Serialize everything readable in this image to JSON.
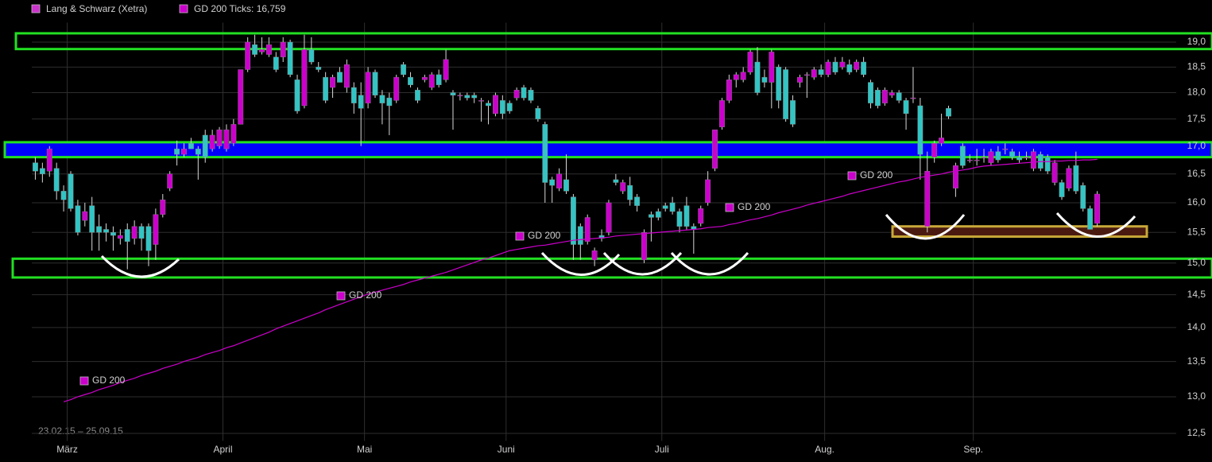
{
  "chart_data": {
    "type": "candlestick",
    "log_scale": true,
    "grid": true,
    "ylim": [
      12.4,
      19.4
    ],
    "yticks": [
      {
        "value": 12.5,
        "label": "12,5"
      },
      {
        "value": 13,
        "label": "13,0"
      },
      {
        "value": 13.5,
        "label": "13,5"
      },
      {
        "value": 14,
        "label": "14,0"
      },
      {
        "value": 14.5,
        "label": "14,5"
      },
      {
        "value": 15,
        "label": "15,0"
      },
      {
        "value": 15.5,
        "label": "15,5"
      },
      {
        "value": 16,
        "label": "16,0"
      },
      {
        "value": 16.5,
        "label": "16,5"
      },
      {
        "value": 17,
        "label": "17,0"
      },
      {
        "value": 17.5,
        "label": "17,5"
      },
      {
        "value": 18,
        "label": "18,0"
      },
      {
        "value": 18.5,
        "label": "18,5"
      },
      {
        "value": 19,
        "label": "19,0"
      }
    ],
    "date_range": "23.02.15 – 25.09.15",
    "categories": [
      null,
      null,
      null,
      null,
      null,
      "März",
      null,
      null,
      null,
      null,
      null,
      null,
      null,
      null,
      null,
      null,
      null,
      null,
      null,
      null,
      null,
      null,
      null,
      null,
      null,
      null,
      null,
      "April",
      null,
      null,
      null,
      null,
      null,
      null,
      null,
      null,
      null,
      null,
      null,
      null,
      null,
      null,
      null,
      null,
      null,
      null,
      null,
      "Mai",
      null,
      null,
      null,
      null,
      null,
      null,
      null,
      null,
      null,
      null,
      null,
      null,
      null,
      null,
      null,
      null,
      null,
      null,
      null,
      "Juni",
      null,
      null,
      null,
      null,
      null,
      null,
      null,
      null,
      null,
      null,
      null,
      null,
      null,
      null,
      null,
      null,
      null,
      null,
      null,
      null,
      null,
      "Juli",
      null,
      null,
      null,
      null,
      null,
      null,
      null,
      null,
      null,
      null,
      null,
      null,
      null,
      null,
      null,
      null,
      null,
      null,
      null,
      null,
      null,
      null,
      "Aug.",
      null,
      null,
      null,
      null,
      null,
      null,
      null,
      null,
      null,
      null,
      null,
      null,
      null,
      null,
      null,
      null,
      null,
      null,
      null,
      null,
      "Sep.",
      null,
      null,
      null,
      null,
      null,
      null,
      null,
      null,
      null,
      null,
      null,
      null,
      null,
      null,
      null,
      null,
      null
    ],
    "series": [
      {
        "name": "Lang & Schwarz (Xetra)",
        "color": "#cc33cc",
        "up_color": "#cc00cc",
        "down_color": "#33c4c4",
        "wick_color": "#d8d8d8",
        "open": [
          16.7,
          16.6,
          16.55,
          16.6,
          16.2,
          16.5,
          15.95,
          15.7,
          15.95,
          15.6,
          15.55,
          15.5,
          15.4,
          15.55,
          15.4,
          15.6,
          15.6,
          15.3,
          15.8,
          16.25,
          16.95,
          16.85,
          17.05,
          16.95,
          17.2,
          16.95,
          17.0,
          16.95,
          17.05,
          17.4,
          18.45,
          18.95,
          18.8,
          18.75,
          18.7,
          18.7,
          19.0,
          18.25,
          17.75,
          18.85,
          18.5,
          18.3,
          18.1,
          18.4,
          18.1,
          18.1,
          17.95,
          17.8,
          18.4,
          17.95,
          17.9,
          17.85,
          18.55,
          18.3,
          18.05,
          18.25,
          18.1,
          18.35,
          18.25,
          18.0,
          17.95,
          17.95,
          17.95,
          17.85,
          17.8,
          17.6,
          17.85,
          17.8,
          17.9,
          18.1,
          18.05,
          17.7,
          17.4,
          16.4,
          16.25,
          16.4,
          16.1,
          15.6,
          15.35,
          15.05,
          15.45,
          15.5,
          16.4,
          16.2,
          16.3,
          16.1,
          15.05,
          15.8,
          15.85,
          15.95,
          16.0,
          15.85,
          15.95,
          15.6,
          15.65,
          16.0,
          16.6,
          17.35,
          17.85,
          18.25,
          18.25,
          18.4,
          18.6,
          18.3,
          18.2,
          18.5,
          18.45,
          17.85,
          18.2,
          18.35,
          18.3,
          18.45,
          18.35,
          18.6,
          18.5,
          18.55,
          18.45,
          18.6,
          18.2,
          18.05,
          17.8,
          17.95,
          18.0,
          17.85,
          17.9,
          17.75,
          15.6,
          16.8,
          17.05,
          17.7,
          16.25,
          17.0,
          16.75,
          16.75,
          16.8,
          16.7,
          16.9,
          16.95,
          16.9,
          16.8,
          16.8,
          16.6,
          16.85,
          16.8,
          16.35,
          16.35,
          16.25,
          16.65,
          16.3,
          15.9,
          15.65
        ],
        "high": [
          16.8,
          16.7,
          17.0,
          16.7,
          16.3,
          16.55,
          16.05,
          16.0,
          16.1,
          15.8,
          15.65,
          15.6,
          15.55,
          15.65,
          15.7,
          15.65,
          15.65,
          15.9,
          16.15,
          16.55,
          17.1,
          17.05,
          17.15,
          17.0,
          17.3,
          17.3,
          17.35,
          17.4,
          17.5,
          18.45,
          19.1,
          19.15,
          19.1,
          19.1,
          18.8,
          19.1,
          19.05,
          18.35,
          19.15,
          19.1,
          18.6,
          18.4,
          18.35,
          18.5,
          18.65,
          18.2,
          18.2,
          18.5,
          18.45,
          18.05,
          18.0,
          18.35,
          18.6,
          18.4,
          18.1,
          18.35,
          18.4,
          18.45,
          18.85,
          18.05,
          18.0,
          18.0,
          18.0,
          17.9,
          17.85,
          18.0,
          17.95,
          17.85,
          18.1,
          18.15,
          18.1,
          17.75,
          17.45,
          16.45,
          16.6,
          16.85,
          16.15,
          15.65,
          15.8,
          15.25,
          15.55,
          16.05,
          16.5,
          16.4,
          16.45,
          16.15,
          15.55,
          15.85,
          15.9,
          16.0,
          16.1,
          15.9,
          16.1,
          15.65,
          15.95,
          16.55,
          17.3,
          17.9,
          18.35,
          18.4,
          18.5,
          18.85,
          18.9,
          18.45,
          18.85,
          18.55,
          18.5,
          17.95,
          18.35,
          18.4,
          18.5,
          18.55,
          18.65,
          18.7,
          18.7,
          18.65,
          18.65,
          18.7,
          18.25,
          18.1,
          18.1,
          18.05,
          18.05,
          17.9,
          18.5,
          17.9,
          16.9,
          17.1,
          17.6,
          17.75,
          16.7,
          17.05,
          16.85,
          16.95,
          16.95,
          16.95,
          17.0,
          17.05,
          16.95,
          16.9,
          16.9,
          16.95,
          16.9,
          16.85,
          16.75,
          16.4,
          16.65,
          16.9,
          16.35,
          15.95,
          16.2
        ],
        "low": [
          16.4,
          16.35,
          16.45,
          16.05,
          15.85,
          15.85,
          15.45,
          15.6,
          15.2,
          15.2,
          15.35,
          15.2,
          15.3,
          14.9,
          15.3,
          15.2,
          14.95,
          15.05,
          15.75,
          16.2,
          16.65,
          16.8,
          16.95,
          16.4,
          16.7,
          16.9,
          16.95,
          16.9,
          17.0,
          17.4,
          18.4,
          18.7,
          18.75,
          18.7,
          18.4,
          18.6,
          18.3,
          17.6,
          17.7,
          18.55,
          18.4,
          17.8,
          17.9,
          18.2,
          18.0,
          17.6,
          17.0,
          17.7,
          17.9,
          17.4,
          17.2,
          17.8,
          18.3,
          18.1,
          17.8,
          18.2,
          18.05,
          18.1,
          18.2,
          17.3,
          17.85,
          17.85,
          17.8,
          17.45,
          17.4,
          17.55,
          17.5,
          17.6,
          17.85,
          17.85,
          17.8,
          17.45,
          16.0,
          16.0,
          16.2,
          16.15,
          15.05,
          15.05,
          15.3,
          14.95,
          15.35,
          15.45,
          16.3,
          16.15,
          15.95,
          15.85,
          15.0,
          15.35,
          15.7,
          15.85,
          15.8,
          15.5,
          15.55,
          15.15,
          15.6,
          15.95,
          16.55,
          17.3,
          17.8,
          18.1,
          18.2,
          18.35,
          17.95,
          18.1,
          17.7,
          17.7,
          17.45,
          17.35,
          18.1,
          17.9,
          18.25,
          18.3,
          18.3,
          18.35,
          18.45,
          18.35,
          18.4,
          18.3,
          17.7,
          17.7,
          17.75,
          17.9,
          17.8,
          17.3,
          17.8,
          16.4,
          15.5,
          16.7,
          17.0,
          17.5,
          16.1,
          16.6,
          16.7,
          16.65,
          16.7,
          16.65,
          16.7,
          16.85,
          16.75,
          16.7,
          16.75,
          16.55,
          16.55,
          16.5,
          16.3,
          16.05,
          16.2,
          16.15,
          15.85,
          15.55,
          15.6
        ],
        "close": [
          16.55,
          16.5,
          16.95,
          16.2,
          16.05,
          15.9,
          15.5,
          15.85,
          15.5,
          15.5,
          15.5,
          15.45,
          15.45,
          15.35,
          15.6,
          15.4,
          15.2,
          15.8,
          16.05,
          16.5,
          16.85,
          16.95,
          16.95,
          16.85,
          16.8,
          17.2,
          17.3,
          17.3,
          17.4,
          18.45,
          19.0,
          18.75,
          18.85,
          18.95,
          18.45,
          19.0,
          18.35,
          17.65,
          18.85,
          18.6,
          18.45,
          17.85,
          18.3,
          18.2,
          18.55,
          17.8,
          17.7,
          18.4,
          17.95,
          17.8,
          17.75,
          18.3,
          18.35,
          18.15,
          17.85,
          18.3,
          18.35,
          18.15,
          18.65,
          17.95,
          17.95,
          17.9,
          17.9,
          17.85,
          17.75,
          17.95,
          17.6,
          17.65,
          18.05,
          17.9,
          17.85,
          17.5,
          16.35,
          16.3,
          16.5,
          16.2,
          15.3,
          15.3,
          15.75,
          15.2,
          15.4,
          16.0,
          16.35,
          16.35,
          16.05,
          15.95,
          15.5,
          15.75,
          15.75,
          15.9,
          15.85,
          15.6,
          15.6,
          15.55,
          15.9,
          16.4,
          17.3,
          17.85,
          18.25,
          18.35,
          18.4,
          18.8,
          18.0,
          18.2,
          18.8,
          17.85,
          17.5,
          17.4,
          18.3,
          18.35,
          18.45,
          18.35,
          18.6,
          18.4,
          18.6,
          18.4,
          18.6,
          18.35,
          17.8,
          17.75,
          18.05,
          18.0,
          17.85,
          17.6,
          17.9,
          16.85,
          16.55,
          17.05,
          17.15,
          17.55,
          16.65,
          16.65,
          16.75,
          16.75,
          16.8,
          16.9,
          16.75,
          16.95,
          16.8,
          16.75,
          16.8,
          16.9,
          16.6,
          16.55,
          16.7,
          16.1,
          16.6,
          16.2,
          15.9,
          15.55,
          16.15
        ]
      },
      {
        "name": "GD 200 Ticks: 16,759",
        "color": "#cc00cc",
        "values": [
          null,
          null,
          null,
          null,
          12.93,
          12.96,
          13.0,
          13.03,
          13.06,
          13.1,
          13.13,
          13.16,
          13.2,
          13.23,
          13.26,
          13.3,
          13.33,
          13.36,
          13.4,
          13.43,
          13.46,
          13.5,
          13.53,
          13.56,
          13.6,
          13.63,
          13.66,
          13.7,
          13.73,
          13.77,
          13.81,
          13.85,
          13.89,
          13.93,
          13.98,
          14.02,
          14.06,
          14.1,
          14.14,
          14.18,
          14.22,
          14.27,
          14.31,
          14.35,
          14.39,
          14.43,
          14.47,
          14.51,
          14.54,
          14.57,
          14.6,
          14.63,
          14.66,
          14.7,
          14.73,
          14.76,
          14.79,
          14.82,
          14.85,
          14.89,
          14.93,
          14.97,
          15.01,
          15.05,
          15.08,
          15.12,
          15.16,
          15.2,
          15.22,
          15.24,
          15.26,
          15.28,
          15.29,
          15.31,
          15.33,
          15.35,
          15.37,
          15.38,
          15.39,
          15.4,
          15.41,
          15.42,
          15.44,
          15.45,
          15.46,
          15.47,
          15.48,
          15.49,
          15.5,
          15.51,
          15.52,
          15.53,
          15.54,
          15.55,
          15.56,
          15.58,
          15.59,
          15.6,
          15.63,
          15.65,
          15.68,
          15.71,
          15.73,
          15.76,
          15.79,
          15.83,
          15.86,
          15.89,
          15.92,
          15.96,
          15.99,
          16.02,
          16.05,
          16.08,
          16.11,
          16.15,
          16.18,
          16.21,
          16.24,
          16.27,
          16.3,
          16.33,
          16.36,
          16.38,
          16.41,
          16.44,
          16.46,
          16.48,
          16.5,
          16.53,
          16.55,
          16.57,
          16.59,
          16.62,
          16.64,
          16.65,
          16.66,
          16.67,
          16.68,
          16.69,
          16.7,
          16.71,
          16.72,
          16.72,
          16.73,
          16.73,
          16.74,
          16.74,
          16.75,
          16.75,
          16.76
        ]
      }
    ],
    "zones": [
      {
        "low": 18.86,
        "high": 19.18,
        "color": "#22e022"
      },
      {
        "low": 16.8,
        "high": 17.07,
        "color": "#22e022",
        "fill": "#0000ff"
      },
      {
        "low": 14.77,
        "high": 15.07,
        "color": "#22e022"
      },
      {
        "low": 15.43,
        "high": 15.6,
        "color": "#c8a838",
        "fill": "#4a1a10"
      }
    ],
    "annotations": [
      "GD 200",
      "GD 200",
      "GD 200",
      "GD 200",
      "GD 200"
    ]
  }
}
